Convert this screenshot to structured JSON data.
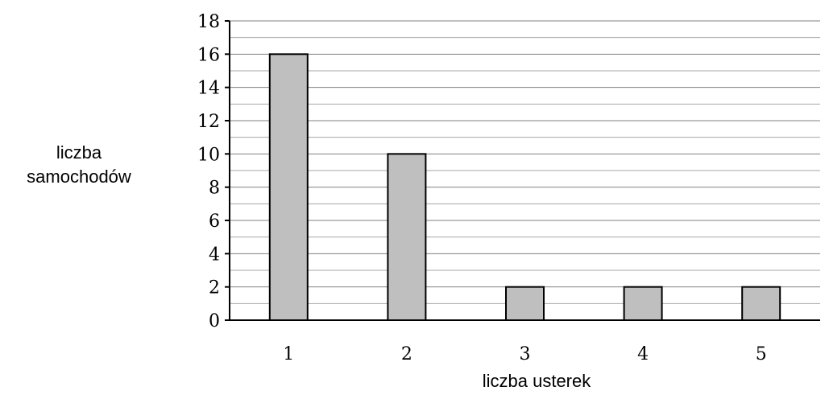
{
  "chart_data": {
    "type": "bar",
    "categories": [
      "1",
      "2",
      "3",
      "4",
      "5"
    ],
    "values": [
      16,
      10,
      2,
      2,
      2
    ],
    "xlabel": "liczba usterek",
    "ylabel_lines": [
      "liczba",
      "samochodów"
    ],
    "ylim": [
      0,
      18
    ],
    "yticks": [
      "0",
      "2",
      "4",
      "6",
      "8",
      "10",
      "12",
      "14",
      "16",
      "18"
    ],
    "grid": true,
    "minor_grid": true,
    "legend": "none"
  },
  "colors": {
    "bar_fill": "#bfbfbf",
    "bar_stroke": "#000000",
    "grid_major": "#808080",
    "grid_minor": "#a6a6a6",
    "axis": "#000000"
  }
}
